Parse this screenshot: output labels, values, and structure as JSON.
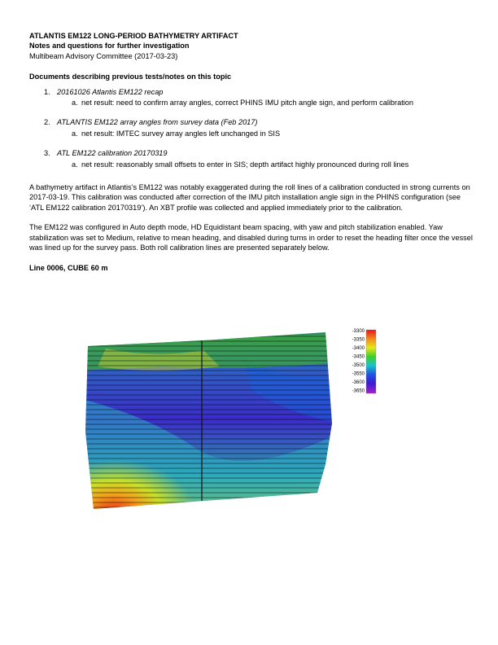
{
  "header": {
    "title": "ATLANTIS EM122 LONG-PERIOD BATHYMETRY ARTIFACT",
    "subtitle": "Notes and questions for further investigation",
    "author_date": "Multibeam Advisory Committee (2017-03-23)"
  },
  "documents": {
    "heading": "Documents describing previous tests/notes on this topic",
    "items": [
      {
        "number": "1.",
        "title": "20161026 Atlantis EM122 recap",
        "letter": "a.",
        "note": "net result: need to confirm array angles, correct PHINS IMU pitch angle sign, and perform calibration"
      },
      {
        "number": "2.",
        "title": "ATLANTIS EM122 array angles from survey data (Feb 2017)",
        "letter": "a.",
        "note": "net result: IMTEC survey array angles left unchanged in SIS"
      },
      {
        "number": "3.",
        "title": "ATL EM122 calibration 20170319",
        "letter": "a.",
        "note": "net result: reasonably small offsets to enter in SIS; depth artifact highly pronounced during roll lines"
      }
    ]
  },
  "paragraphs": [
    "A bathymetry artifact in Atlantis’s EM122 was notably exaggerated during the roll lines of a calibration conducted in strong currents on 2017-03-19.  This calibration was conducted after correction of the IMU pitch installation angle sign in the PHINS configuration (see ‘ATL EM122 calibration 20170319’).  An XBT profile was collected and applied immediately prior to the calibration.",
    "The EM122 was configured in Auto depth mode, HD Equidistant beam spacing, with yaw and pitch stabilization enabled.  Yaw stabilization was set to Medium, relative to mean heading, and disabled during turns in order to reset the heading filter once the vessel was lined up for the survey pass.  Both roll calibration lines are presented separately below."
  ],
  "figure": {
    "heading": "Line 0006, CUBE 60 m",
    "colorbar": {
      "ticks": [
        "-3300",
        "-3350",
        "-3400",
        "-3450",
        "-3500",
        "-3550",
        "-3600",
        "-3650"
      ],
      "colors": [
        "#e8121e",
        "#f08a1c",
        "#e9e51c",
        "#3dcf25",
        "#1bc4c9",
        "#1f56e0",
        "#3a1cd0",
        "#a21fc8"
      ]
    }
  }
}
